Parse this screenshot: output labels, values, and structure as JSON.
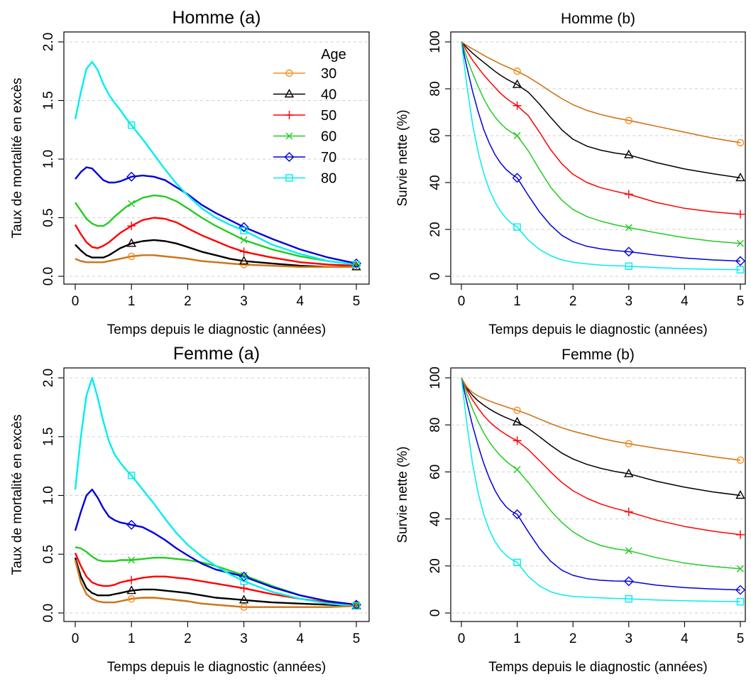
{
  "legend": {
    "title": "Age",
    "entries": [
      "30",
      "40",
      "50",
      "60",
      "70",
      "80"
    ]
  },
  "colors": {
    "30": "#FF8C1A",
    "40": "#000000",
    "50": "#FF0000",
    "60": "#22CC22",
    "70": "#0000DD",
    "80": "#00EEEE",
    "overlay": "#CC7722"
  },
  "markers": {
    "30": "circle-marker",
    "40": "triangle-marker",
    "50": "plus-marker",
    "60": "x-marker",
    "70": "diamond-marker",
    "80": "square-marker"
  },
  "chart_data": [
    {
      "id": "homme-a",
      "type": "line",
      "title": "Homme (a)",
      "xlabel": "Temps depuis le diagnostic (années)",
      "ylabel": "Taux de mortalité en excès",
      "xlim": [
        0,
        5
      ],
      "ylim": [
        0,
        2
      ],
      "xticks": [
        "0",
        "1",
        "2",
        "3",
        "4",
        "5"
      ],
      "yticks": [
        "0.0",
        "0.5",
        "1.0",
        "1.5",
        "2.0"
      ],
      "grid": "horizontal dashed",
      "legend_position": "top-right",
      "x": [
        0,
        0.1,
        0.2,
        0.3,
        0.4,
        0.5,
        0.6,
        0.7,
        0.8,
        0.9,
        1.0,
        1.2,
        1.4,
        1.6,
        1.8,
        2.0,
        2.25,
        2.5,
        2.75,
        3.0,
        3.5,
        4.0,
        4.5,
        5.0
      ],
      "series": [
        {
          "name": "30",
          "values": [
            0.15,
            0.13,
            0.12,
            0.12,
            0.12,
            0.12,
            0.13,
            0.14,
            0.15,
            0.16,
            0.17,
            0.18,
            0.18,
            0.17,
            0.16,
            0.15,
            0.13,
            0.12,
            0.11,
            0.1,
            0.09,
            0.08,
            0.08,
            0.08
          ]
        },
        {
          "name": "40",
          "values": [
            0.27,
            0.22,
            0.18,
            0.16,
            0.16,
            0.16,
            0.18,
            0.21,
            0.24,
            0.26,
            0.28,
            0.3,
            0.31,
            0.3,
            0.28,
            0.25,
            0.21,
            0.18,
            0.15,
            0.13,
            0.11,
            0.09,
            0.08,
            0.08
          ]
        },
        {
          "name": "50",
          "values": [
            0.44,
            0.36,
            0.29,
            0.25,
            0.24,
            0.26,
            0.29,
            0.33,
            0.37,
            0.4,
            0.43,
            0.48,
            0.5,
            0.49,
            0.46,
            0.41,
            0.35,
            0.3,
            0.25,
            0.21,
            0.16,
            0.12,
            0.1,
            0.09
          ]
        },
        {
          "name": "60",
          "values": [
            0.63,
            0.56,
            0.49,
            0.45,
            0.43,
            0.43,
            0.46,
            0.51,
            0.55,
            0.59,
            0.62,
            0.67,
            0.69,
            0.68,
            0.64,
            0.58,
            0.5,
            0.43,
            0.37,
            0.31,
            0.23,
            0.17,
            0.13,
            0.1
          ]
        },
        {
          "name": "70",
          "values": [
            0.83,
            0.89,
            0.93,
            0.92,
            0.87,
            0.82,
            0.8,
            0.8,
            0.81,
            0.83,
            0.85,
            0.86,
            0.85,
            0.82,
            0.76,
            0.7,
            0.61,
            0.54,
            0.48,
            0.42,
            0.32,
            0.23,
            0.16,
            0.11
          ]
        },
        {
          "name": "80",
          "values": [
            1.34,
            1.57,
            1.77,
            1.83,
            1.76,
            1.64,
            1.55,
            1.48,
            1.42,
            1.35,
            1.29,
            1.17,
            1.04,
            0.91,
            0.79,
            0.69,
            0.58,
            0.5,
            0.44,
            0.39,
            0.27,
            0.19,
            0.13,
            0.1
          ]
        }
      ],
      "marker_x": [
        1,
        3,
        5
      ]
    },
    {
      "id": "homme-b",
      "type": "line",
      "title": "Homme  (b)",
      "xlabel": "Temps depuis le diagnostic (années)",
      "ylabel": "Survie nette (%)",
      "xlim": [
        0,
        5
      ],
      "ylim": [
        0,
        100
      ],
      "xticks": [
        "0",
        "1",
        "2",
        "3",
        "4",
        "5"
      ],
      "yticks": [
        "0",
        "20",
        "40",
        "60",
        "80",
        "100"
      ],
      "grid": "horizontal dashed",
      "x": [
        0,
        0.1,
        0.2,
        0.3,
        0.4,
        0.5,
        0.6,
        0.7,
        0.8,
        0.9,
        1.0,
        1.2,
        1.4,
        1.6,
        1.8,
        2.0,
        2.25,
        2.5,
        2.75,
        3.0,
        3.5,
        4.0,
        4.5,
        5.0
      ],
      "series": [
        {
          "name": "30",
          "values": [
            100,
            98.4,
            97.0,
            95.7,
            94.3,
            93.0,
            91.8,
            90.6,
            89.5,
            88.5,
            87.5,
            85.0,
            82.0,
            78.8,
            75.8,
            73.2,
            70.8,
            69.0,
            67.6,
            66.5,
            64.0,
            61.5,
            59.0,
            57.0
          ]
        },
        {
          "name": "40",
          "values": [
            100,
            97.5,
            95.2,
            93.2,
            91.3,
            89.4,
            87.5,
            85.8,
            84.3,
            83.0,
            81.8,
            78.5,
            73.5,
            67.8,
            62.5,
            58.5,
            55.5,
            53.8,
            52.6,
            51.8,
            48.5,
            45.8,
            43.8,
            42.0
          ]
        },
        {
          "name": "50",
          "values": [
            100,
            95.9,
            92.2,
            89.0,
            86.0,
            83.2,
            80.6,
            78.1,
            76.0,
            74.3,
            72.8,
            68.5,
            61.5,
            54.0,
            48.0,
            43.5,
            40.0,
            37.8,
            36.3,
            35.0,
            31.5,
            29.0,
            27.5,
            26.5
          ]
        },
        {
          "name": "60",
          "values": [
            100,
            93.0,
            86.7,
            81.0,
            75.8,
            71.5,
            68.0,
            65.3,
            63.0,
            61.4,
            60.0,
            53.5,
            45.5,
            38.0,
            32.5,
            28.5,
            25.5,
            23.5,
            22.0,
            20.8,
            18.5,
            16.5,
            15.0,
            14.0
          ]
        },
        {
          "name": "70",
          "values": [
            100,
            89.0,
            79.0,
            70.2,
            62.7,
            56.8,
            52.0,
            48.4,
            45.6,
            43.6,
            42.0,
            34.5,
            27.5,
            21.8,
            17.5,
            14.8,
            12.8,
            11.7,
            11.0,
            10.5,
            9.0,
            7.8,
            7.0,
            6.5
          ]
        },
        {
          "name": "80",
          "values": [
            100,
            81.0,
            65.0,
            53.0,
            44.0,
            37.0,
            31.8,
            27.8,
            24.8,
            22.6,
            21.0,
            15.5,
            11.5,
            8.8,
            7.0,
            6.0,
            5.3,
            4.8,
            4.5,
            4.3,
            3.7,
            3.2,
            3.0,
            2.8
          ]
        }
      ],
      "marker_x": [
        1,
        3,
        5
      ]
    },
    {
      "id": "femme-a",
      "type": "line",
      "title": "Femme (a)",
      "xlabel": "Temps depuis le diagnostic (années)",
      "ylabel": "Taux de mortalité en excès",
      "xlim": [
        0,
        5
      ],
      "ylim": [
        0,
        2
      ],
      "xticks": [
        "0",
        "1",
        "2",
        "3",
        "4",
        "5"
      ],
      "yticks": [
        "0.0",
        "0.5",
        "1.0",
        "1.5",
        "2.0"
      ],
      "grid": "horizontal dashed",
      "x": [
        0,
        0.1,
        0.2,
        0.3,
        0.4,
        0.5,
        0.6,
        0.7,
        0.8,
        0.9,
        1.0,
        1.2,
        1.4,
        1.6,
        1.8,
        2.0,
        2.25,
        2.5,
        2.75,
        3.0,
        3.5,
        4.0,
        4.5,
        5.0
      ],
      "series": [
        {
          "name": "30",
          "values": [
            0.45,
            0.26,
            0.16,
            0.12,
            0.1,
            0.09,
            0.09,
            0.09,
            0.1,
            0.11,
            0.12,
            0.13,
            0.13,
            0.12,
            0.11,
            0.1,
            0.08,
            0.07,
            0.06,
            0.05,
            0.05,
            0.05,
            0.05,
            0.06
          ]
        },
        {
          "name": "40",
          "values": [
            0.47,
            0.31,
            0.21,
            0.17,
            0.15,
            0.15,
            0.15,
            0.16,
            0.17,
            0.18,
            0.19,
            0.2,
            0.2,
            0.19,
            0.18,
            0.17,
            0.15,
            0.13,
            0.12,
            0.11,
            0.09,
            0.08,
            0.07,
            0.06
          ]
        },
        {
          "name": "50",
          "values": [
            0.51,
            0.4,
            0.31,
            0.26,
            0.24,
            0.23,
            0.23,
            0.24,
            0.26,
            0.27,
            0.28,
            0.3,
            0.31,
            0.31,
            0.3,
            0.29,
            0.27,
            0.25,
            0.23,
            0.21,
            0.16,
            0.12,
            0.09,
            0.07
          ]
        },
        {
          "name": "60",
          "values": [
            0.56,
            0.55,
            0.52,
            0.48,
            0.45,
            0.44,
            0.44,
            0.44,
            0.45,
            0.45,
            0.45,
            0.46,
            0.47,
            0.47,
            0.46,
            0.45,
            0.43,
            0.4,
            0.36,
            0.32,
            0.23,
            0.15,
            0.1,
            0.07
          ]
        },
        {
          "name": "70",
          "values": [
            0.7,
            0.86,
            1.0,
            1.05,
            0.98,
            0.89,
            0.82,
            0.79,
            0.77,
            0.76,
            0.75,
            0.73,
            0.68,
            0.62,
            0.55,
            0.49,
            0.42,
            0.37,
            0.34,
            0.31,
            0.22,
            0.15,
            0.1,
            0.07
          ]
        },
        {
          "name": "80",
          "values": [
            1.05,
            1.5,
            1.85,
            2.0,
            1.83,
            1.63,
            1.46,
            1.35,
            1.28,
            1.22,
            1.17,
            1.05,
            0.93,
            0.8,
            0.68,
            0.58,
            0.48,
            0.4,
            0.33,
            0.27,
            0.18,
            0.12,
            0.08,
            0.06
          ]
        }
      ],
      "marker_x": [
        1,
        3,
        5
      ]
    },
    {
      "id": "femme-b",
      "type": "line",
      "title": "Femme  (b)",
      "xlabel": "Temps depuis le diagnostic (années)",
      "ylabel": "Survie nette (%)",
      "xlim": [
        0,
        5
      ],
      "ylim": [
        0,
        100
      ],
      "xticks": [
        "0",
        "1",
        "2",
        "3",
        "4",
        "5"
      ],
      "yticks": [
        "0",
        "20",
        "40",
        "60",
        "80",
        "100"
      ],
      "grid": "horizontal dashed",
      "x": [
        0,
        0.1,
        0.2,
        0.3,
        0.4,
        0.5,
        0.6,
        0.7,
        0.8,
        0.9,
        1.0,
        1.2,
        1.4,
        1.6,
        1.8,
        2.0,
        2.25,
        2.5,
        2.75,
        3.0,
        3.5,
        4.0,
        4.5,
        5.0
      ],
      "series": [
        {
          "name": "30",
          "values": [
            100,
            96.0,
            93.8,
            92.3,
            91.2,
            90.2,
            89.3,
            88.5,
            87.7,
            86.9,
            86.2,
            84.5,
            82.5,
            80.5,
            78.8,
            77.3,
            75.8,
            74.3,
            73.0,
            72.0,
            70.0,
            68.3,
            66.5,
            65.0
          ]
        },
        {
          "name": "40",
          "values": [
            100,
            95.5,
            92.5,
            90.2,
            88.4,
            86.8,
            85.4,
            84.2,
            83.1,
            82.1,
            81.2,
            78.5,
            75.0,
            71.3,
            68.0,
            65.5,
            63.2,
            61.5,
            60.2,
            59.2,
            56.0,
            53.5,
            51.5,
            50.0
          ]
        },
        {
          "name": "50",
          "values": [
            100,
            94.8,
            90.6,
            87.1,
            84.0,
            81.4,
            79.3,
            77.5,
            75.9,
            74.5,
            73.3,
            69.5,
            64.8,
            60.0,
            55.5,
            52.0,
            48.8,
            46.3,
            44.5,
            43.0,
            39.5,
            36.8,
            34.8,
            33.3
          ]
        },
        {
          "name": "60",
          "values": [
            100,
            93.0,
            86.8,
            81.3,
            76.7,
            72.8,
            69.6,
            66.9,
            64.6,
            62.7,
            61.0,
            55.5,
            49.5,
            43.5,
            38.5,
            34.5,
            31.0,
            28.7,
            27.3,
            26.5,
            23.5,
            21.2,
            19.8,
            18.8
          ]
        },
        {
          "name": "70",
          "values": [
            100,
            89.5,
            79.8,
            71.2,
            63.7,
            57.4,
            52.2,
            48.2,
            45.2,
            43.2,
            42.0,
            34.5,
            27.5,
            22.0,
            18.2,
            16.0,
            14.6,
            13.9,
            13.6,
            13.5,
            11.8,
            10.8,
            10.2,
            9.8
          ]
        },
        {
          "name": "80",
          "values": [
            100,
            80.0,
            63.5,
            51.0,
            42.0,
            35.3,
            30.5,
            27.0,
            24.5,
            22.8,
            21.5,
            15.5,
            11.5,
            9.0,
            7.7,
            7.0,
            6.7,
            6.4,
            6.2,
            6.0,
            5.5,
            5.2,
            5.0,
            4.8
          ]
        }
      ],
      "marker_x": [
        1,
        3,
        5
      ]
    }
  ]
}
